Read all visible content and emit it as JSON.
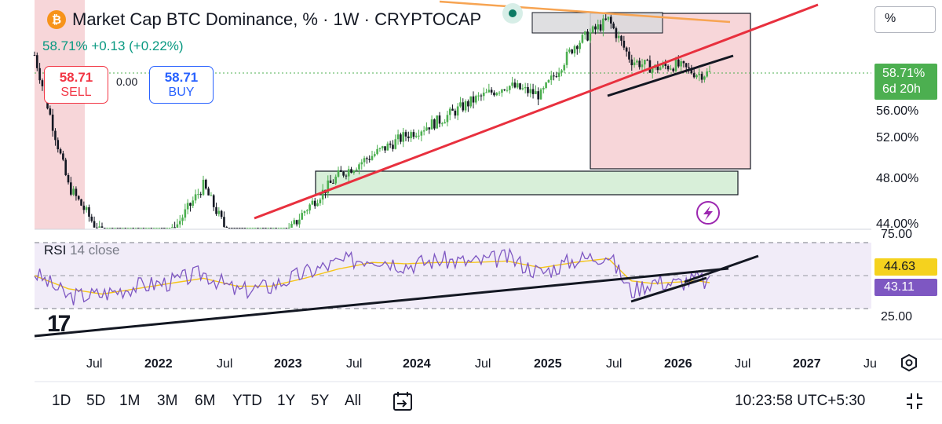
{
  "header": {
    "btc_symbol": "₿",
    "title": "Market Cap BTC Dominance, % · 1W · CRYPTOCAP",
    "change": "58.71%  +0.13 (+0.22%)"
  },
  "trade": {
    "sell_value": "58.71",
    "sell_label": "SELL",
    "spread": "0.00",
    "buy_value": "58.71",
    "buy_label": "BUY"
  },
  "scale_mode": "%",
  "price_tag": {
    "value": "58.71%",
    "countdown": "6d 20h"
  },
  "rsi": {
    "label": "RSI",
    "params": "14 close",
    "rsi_value": "43.11",
    "ma_value": "44.63"
  },
  "time_ranges": [
    "1D",
    "5D",
    "1M",
    "3M",
    "6M",
    "YTD",
    "1Y",
    "5Y",
    "All"
  ],
  "clock": "10:23:58 UTC+5:30",
  "colors": {
    "up": "#089981",
    "down": "#131722",
    "candle_up": "#4caf50",
    "candle_down": "#131722",
    "trendline": "#e8303e",
    "rsi_line": "#7e57c2",
    "rsi_ma": "#f5c518",
    "zone_red": "#f7d6d9",
    "zone_green": "#d8efd9",
    "accent": "#2962ff"
  },
  "icons": {
    "goto_date": "calendar-arrow-icon",
    "fullscreen": "fullscreen-icon",
    "settings": "gear-icon",
    "alert": "lightning-icon"
  },
  "chart_data": [
    {
      "type": "candlestick",
      "title": "Market Cap BTC Dominance, % · 1W · CRYPTOCAP",
      "y_axis_labels": [
        "44.00%",
        "48.00%",
        "52.00%",
        "56.00%",
        "58.71%"
      ],
      "x_axis_labels": [
        "Jul",
        "2022",
        "Jul",
        "2023",
        "Jul",
        "2024",
        "Jul",
        "2025",
        "Jul",
        "2026",
        "Jul",
        "2027",
        "Ju"
      ],
      "series": [
        {
          "x": [
            "2021-03",
            "2021-06",
            "2021-09",
            "2021-12",
            "2022-03",
            "2022-06",
            "2022-09",
            "2022-12",
            "2023-03",
            "2023-06",
            "2023-09",
            "2023-12",
            "2024-03",
            "2024-06",
            "2024-09",
            "2024-12",
            "2025-03",
            "2025-06",
            "2025-08",
            "2025-10",
            "2025-12",
            "2026-02",
            "2026-03"
          ],
          "values": [
            60.5,
            47.5,
            42.5,
            40.5,
            42.5,
            47.5,
            41.0,
            40.5,
            45.0,
            48.5,
            50.5,
            52.5,
            54.0,
            56.0,
            57.5,
            56.5,
            61.5,
            64.0,
            60.0,
            59.2,
            59.5,
            58.6,
            58.71
          ]
        }
      ],
      "last_value": 58.71,
      "change": 0.13,
      "change_pct": 0.22
    },
    {
      "type": "line",
      "title": "RSI 14 close",
      "ylim": [
        25,
        75
      ],
      "y_axis_labels": [
        "75.00",
        "25.00"
      ],
      "series": [
        {
          "x": [
            "2021-03",
            "2021-06",
            "2021-09",
            "2021-12",
            "2022-03",
            "2022-06",
            "2022-09",
            "2022-12",
            "2023-03",
            "2023-06",
            "2023-09",
            "2023-12",
            "2024-03",
            "2024-06",
            "2024-09",
            "2024-12",
            "2025-03",
            "2025-06",
            "2025-08",
            "2025-10",
            "2025-12",
            "2026-02",
            "2026-03"
          ],
          "values": [
            52,
            34,
            36,
            42,
            45,
            52,
            38,
            42,
            52,
            60,
            64,
            58,
            62,
            60,
            64,
            52,
            62,
            66,
            38,
            46,
            44,
            48,
            43.11
          ]
        },
        {
          "values": [
            50,
            40,
            36,
            40,
            44,
            48,
            42,
            42,
            48,
            55,
            60,
            59,
            60,
            60,
            61,
            56,
            60,
            63,
            46,
            44,
            45,
            46,
            44.63
          ]
        }
      ]
    }
  ]
}
